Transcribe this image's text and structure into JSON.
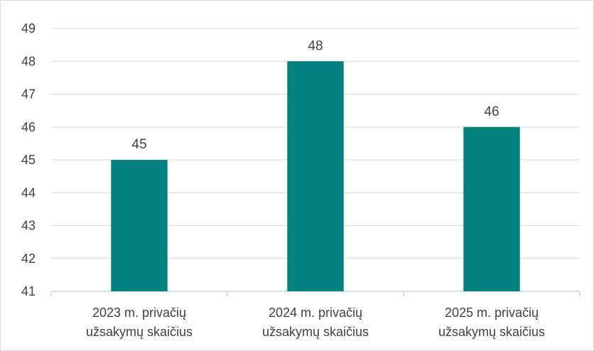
{
  "chart_data": {
    "type": "bar",
    "categories": [
      [
        "2023 m. privačių",
        "užsakymų skaičius"
      ],
      [
        "2024 m. privačių",
        "užsakymų skaičius"
      ],
      [
        "2025 m. privačių",
        "užsakymų skaičius"
      ]
    ],
    "values": [
      45,
      48,
      46
    ],
    "data_labels": [
      "45",
      "48",
      "46"
    ],
    "y_ticks": [
      "41",
      "42",
      "43",
      "44",
      "45",
      "46",
      "47",
      "48",
      "49"
    ],
    "ylim": [
      41,
      49
    ],
    "grid": true,
    "legend": "none",
    "colors": {
      "bar": "#00807f",
      "grid": "#d9d9d9",
      "axis": "#bfbfbf",
      "text": "#404040"
    }
  }
}
